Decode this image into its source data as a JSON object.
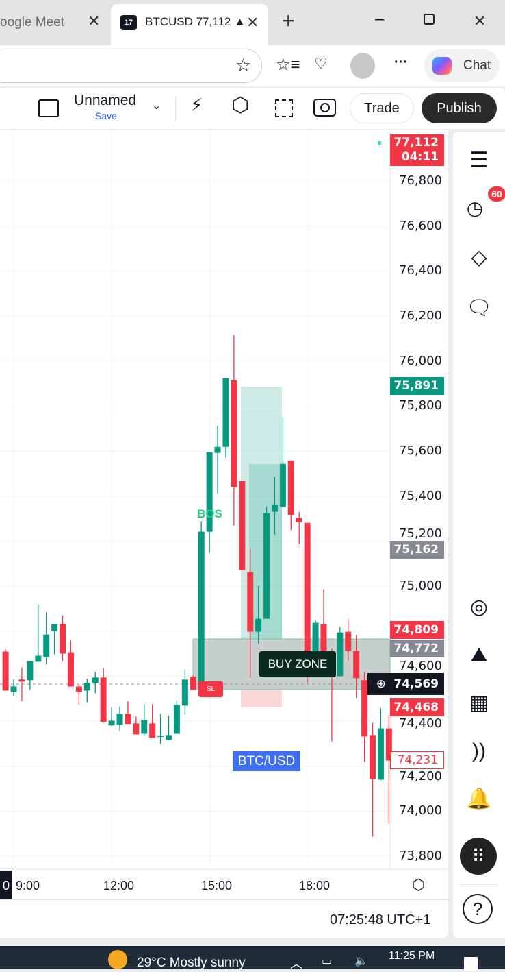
{
  "browser": {
    "inactive_tab": "oogle Meet",
    "active_tab": "BTCUSD 77,112 ▲",
    "tab_logo": "TV",
    "chat_label": "Chat"
  },
  "toolbar": {
    "layout_name": "Unnamed",
    "save_label": "Save",
    "trade_label": "Trade",
    "publish_label": "Publish"
  },
  "price_axis": {
    "ticks": [
      "76,800",
      "76,600",
      "76,400",
      "76,200",
      "76,000",
      "75,800",
      "75,600",
      "75,400",
      "75,200",
      "75,000",
      "74,800",
      "74,600",
      "74,400",
      "74,200",
      "74,000",
      "73,800"
    ],
    "tags": [
      {
        "price": "77,112",
        "sub": "04:11",
        "color": "#f23645",
        "kind": "current"
      },
      {
        "price": "75,891",
        "color": "#089981",
        "kind": "target"
      },
      {
        "price": "75,162",
        "color": "#868993",
        "kind": "entry"
      },
      {
        "price": "74,809",
        "color": "#f23645",
        "kind": "high"
      },
      {
        "price": "74,772",
        "color": "#868993",
        "kind": "zone-top"
      },
      {
        "price": "74,569",
        "color": "#131722",
        "kind": "crosshair"
      },
      {
        "price": "74,468",
        "color": "#f23645",
        "kind": "stop"
      },
      {
        "price": "74,231",
        "color": "#f23645",
        "kind": "outlined"
      }
    ]
  },
  "time_axis": {
    "ticks": [
      "0",
      "9:00",
      "12:00",
      "15:00",
      "18:00"
    ]
  },
  "annotations": {
    "bos": "BOS",
    "buy_zone": "BUY ZONE",
    "sl": "SL",
    "symbol_label": "BTC/USD"
  },
  "colors": {
    "up": "#089981",
    "down": "#f23645",
    "accent": "#2962ff"
  },
  "status": {
    "clock": "07:25:48 UTC+1"
  },
  "sidebar": {
    "alerts_badge": "60"
  },
  "taskbar": {
    "weather": "29°C  Mostly sunny",
    "time": "11:25 PM"
  },
  "chart_data": {
    "type": "candlestick",
    "interval": "15m",
    "ylim": [
      73750,
      77000
    ],
    "grid": true,
    "candles": [
      {
        "t": "08:30",
        "o": 74709,
        "h": 74718,
        "l": 74536,
        "c": 74536
      },
      {
        "t": "08:45",
        "o": 74530,
        "h": 74585,
        "l": 74512,
        "c": 74554
      },
      {
        "t": "09:00",
        "o": 74585,
        "h": 74639,
        "l": 74490,
        "c": 74576
      },
      {
        "t": "09:15",
        "o": 74582,
        "h": 74667,
        "l": 74539,
        "c": 74667
      },
      {
        "t": "09:30",
        "o": 74664,
        "h": 74919,
        "l": 74664,
        "c": 74691
      },
      {
        "t": "09:45",
        "o": 74685,
        "h": 74883,
        "l": 74652,
        "c": 74785
      },
      {
        "t": "10:00",
        "o": 74800,
        "h": 74831,
        "l": 74697,
        "c": 74831
      },
      {
        "t": "10:15",
        "o": 74831,
        "h": 74870,
        "l": 74667,
        "c": 74700
      },
      {
        "t": "10:30",
        "o": 74706,
        "h": 74761,
        "l": 74554,
        "c": 74554
      },
      {
        "t": "10:45",
        "o": 74554,
        "h": 74566,
        "l": 74472,
        "c": 74530
      },
      {
        "t": "11:00",
        "o": 74536,
        "h": 74588,
        "l": 74484,
        "c": 74570
      },
      {
        "t": "11:15",
        "o": 74570,
        "h": 74618,
        "l": 74524,
        "c": 74594
      },
      {
        "t": "11:30",
        "o": 74594,
        "h": 74636,
        "l": 74393,
        "c": 74396
      },
      {
        "t": "11:45",
        "o": 74381,
        "h": 74460,
        "l": 74378,
        "c": 74402
      },
      {
        "t": "12:00",
        "o": 74384,
        "h": 74466,
        "l": 74356,
        "c": 74432
      },
      {
        "t": "12:15",
        "o": 74432,
        "h": 74490,
        "l": 74387,
        "c": 74387
      },
      {
        "t": "12:30",
        "o": 74390,
        "h": 74420,
        "l": 74341,
        "c": 74341
      },
      {
        "t": "12:45",
        "o": 74344,
        "h": 74475,
        "l": 74338,
        "c": 74405
      },
      {
        "t": "13:00",
        "o": 74390,
        "h": 74475,
        "l": 74326,
        "c": 74326
      },
      {
        "t": "13:15",
        "o": 74332,
        "h": 74432,
        "l": 74298,
        "c": 74335
      },
      {
        "t": "13:30",
        "o": 74317,
        "h": 74423,
        "l": 74314,
        "c": 74338
      },
      {
        "t": "13:45",
        "o": 74344,
        "h": 74493,
        "l": 74344,
        "c": 74472
      },
      {
        "t": "14:00",
        "o": 74469,
        "h": 74630,
        "l": 74432,
        "c": 74585
      },
      {
        "t": "14:15",
        "o": 74597,
        "h": 74606,
        "l": 74539,
        "c": 74539
      },
      {
        "t": "14:30",
        "o": 74542,
        "h": 75287,
        "l": 74542,
        "c": 75242
      },
      {
        "t": "14:45",
        "o": 75242,
        "h": 75595,
        "l": 75147,
        "c": 75595
      },
      {
        "t": "15:00",
        "o": 75592,
        "h": 75713,
        "l": 75412,
        "c": 75619
      },
      {
        "t": "15:15",
        "o": 75619,
        "h": 75923,
        "l": 75570,
        "c": 75923
      },
      {
        "t": "15:30",
        "o": 75914,
        "h": 76115,
        "l": 75269,
        "c": 75440
      },
      {
        "t": "15:45",
        "o": 75467,
        "h": 75467,
        "l": 75071,
        "c": 75071
      },
      {
        "t": "16:00",
        "o": 75062,
        "h": 75166,
        "l": 74591,
        "c": 74797
      },
      {
        "t": "16:15",
        "o": 74797,
        "h": 75001,
        "l": 74743,
        "c": 74855
      },
      {
        "t": "16:30",
        "o": 74855,
        "h": 75354,
        "l": 74855,
        "c": 75324
      },
      {
        "t": "16:45",
        "o": 75330,
        "h": 75485,
        "l": 75226,
        "c": 75363
      },
      {
        "t": "17:00",
        "o": 75351,
        "h": 75753,
        "l": 75351,
        "c": 75543
      },
      {
        "t": "17:15",
        "o": 75558,
        "h": 75558,
        "l": 75248,
        "c": 75315
      },
      {
        "t": "17:30",
        "o": 75303,
        "h": 75330,
        "l": 75187,
        "c": 75284
      },
      {
        "t": "17:45",
        "o": 75281,
        "h": 75281,
        "l": 74570,
        "c": 74697
      },
      {
        "t": "18:00",
        "o": 74697,
        "h": 74849,
        "l": 74697,
        "c": 74837
      },
      {
        "t": "18:15",
        "o": 74831,
        "h": 74986,
        "l": 74676,
        "c": 74676
      },
      {
        "t": "18:30",
        "o": 74679,
        "h": 74721,
        "l": 74310,
        "c": 74606
      },
      {
        "t": "18:45",
        "o": 74600,
        "h": 74819,
        "l": 74600,
        "c": 74794
      },
      {
        "t": "19:00",
        "o": 74797,
        "h": 74852,
        "l": 74670,
        "c": 74712
      },
      {
        "t": "19:15",
        "o": 74712,
        "h": 74782,
        "l": 74502,
        "c": 74591
      },
      {
        "t": "19:30",
        "o": 74582,
        "h": 74618,
        "l": 74219,
        "c": 74332
      },
      {
        "t": "19:45",
        "o": 74338,
        "h": 74393,
        "l": 73887,
        "c": 74143
      },
      {
        "t": "20:00",
        "o": 74140,
        "h": 74457,
        "l": 74137,
        "c": 74368
      },
      {
        "t": "20:15",
        "o": 74368,
        "h": 74429,
        "l": 73945,
        "c": 74225
      }
    ]
  }
}
